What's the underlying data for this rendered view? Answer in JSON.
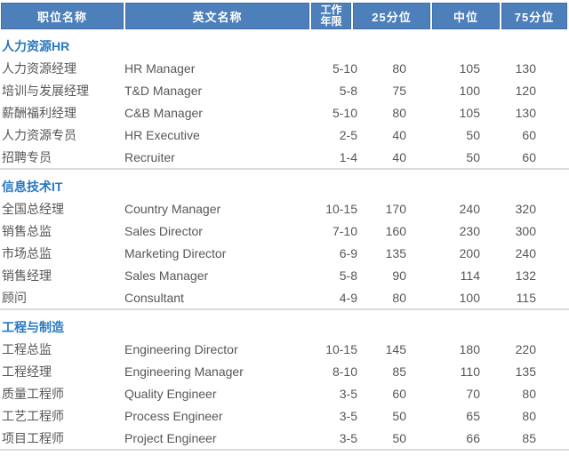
{
  "table": {
    "columns": [
      "职位名称",
      "英文名称",
      "工作年限",
      "25分位",
      "中位",
      "75分位"
    ],
    "work_years_lines": [
      "工作",
      "年限"
    ],
    "sections": [
      {
        "title": "人力资源HR",
        "rows": [
          {
            "cn": "人力资源经理",
            "en": "HR Manager",
            "years": "5-10",
            "p25": "80",
            "p50": "105",
            "p75": "130"
          },
          {
            "cn": "培训与发展经理",
            "en": "T&D Manager",
            "years": "5-8",
            "p25": "75",
            "p50": "100",
            "p75": "120"
          },
          {
            "cn": "薪酬福利经理",
            "en": "C&B Manager",
            "years": "5-10",
            "p25": "80",
            "p50": "105",
            "p75": "130"
          },
          {
            "cn": "人力资源专员",
            "en": "HR Executive",
            "years": "2-5",
            "p25": "40",
            "p50": "50",
            "p75": "60"
          },
          {
            "cn": "招聘专员",
            "en": "Recruiter",
            "years": "1-4",
            "p25": "40",
            "p50": "50",
            "p75": "60"
          }
        ]
      },
      {
        "title": "信息技术IT",
        "rows": [
          {
            "cn": "全国总经理",
            "en": "Country Manager",
            "years": "10-15",
            "p25": "170",
            "p50": "240",
            "p75": "320"
          },
          {
            "cn": "销售总监",
            "en": "Sales Director",
            "years": "7-10",
            "p25": "160",
            "p50": "230",
            "p75": "300"
          },
          {
            "cn": "市场总监",
            "en": "Marketing Director",
            "years": "6-9",
            "p25": "135",
            "p50": "200",
            "p75": "240"
          },
          {
            "cn": "销售经理",
            "en": "Sales Manager",
            "years": "5-8",
            "p25": "90",
            "p50": "114",
            "p75": "132"
          },
          {
            "cn": "顾问",
            "en": "Consultant",
            "years": "4-9",
            "p25": "80",
            "p50": "100",
            "p75": "115"
          }
        ]
      },
      {
        "title": "工程与制造",
        "rows": [
          {
            "cn": "工程总监",
            "en": "Engineering Director",
            "years": "10-15",
            "p25": "145",
            "p50": "180",
            "p75": "220"
          },
          {
            "cn": "工程经理",
            "en": "Engineering Manager",
            "years": "8-10",
            "p25": "85",
            "p50": "110",
            "p75": "135"
          },
          {
            "cn": "质量工程师",
            "en": "Quality Engineer",
            "years": "3-5",
            "p25": "60",
            "p50": "70",
            "p75": "80"
          },
          {
            "cn": "工艺工程师",
            "en": "Process Engineer",
            "years": "3-5",
            "p25": "50",
            "p50": "65",
            "p75": "80"
          },
          {
            "cn": "项目工程师",
            "en": "Project Engineer",
            "years": "3-5",
            "p25": "50",
            "p50": "66",
            "p75": "85"
          }
        ]
      }
    ]
  },
  "colors": {
    "header_bg": "#4d7fba",
    "header_border": "#3e6fa6",
    "header_text": "#ffffff",
    "section_title_text": "#2878c2",
    "body_text": "#575757",
    "divider": "#dadada"
  }
}
